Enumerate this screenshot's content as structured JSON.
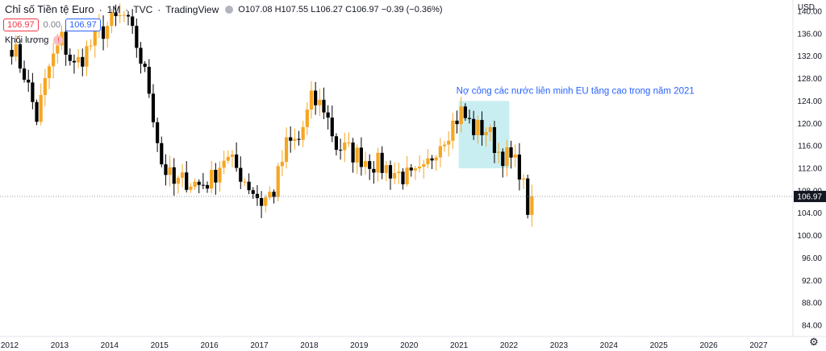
{
  "header": {
    "title": "Chỉ số Tiền tệ Euro",
    "interval": "1M",
    "exchange": "TVC",
    "source": "TradingView",
    "ohlc": {
      "open_label": "O",
      "open": "107.08",
      "high_label": "H",
      "high": "107.55",
      "low_label": "L",
      "low": "106.27",
      "close_label": "C",
      "close": "106.97",
      "change": "−0.39 (−0.36%)"
    }
  },
  "price_row": {
    "bid": "106.97",
    "spread": "0.00",
    "ask": "106.97"
  },
  "volume": {
    "label": "Khối lượng",
    "badge": "!"
  },
  "axis": {
    "currency": "USD",
    "current_price_label": "106.97"
  },
  "colors": {
    "up": "#f5a623",
    "down": "#000000",
    "highlight_fill": "#c9eef2",
    "annotation_text": "#2962ff",
    "price_line": "#9598a1",
    "price_tag_bg": "#131722"
  },
  "chart_data": {
    "type": "candlestick",
    "title": "",
    "xlabel": "",
    "ylabel": "",
    "ylim": [
      82,
      142
    ],
    "current_price": 106.97,
    "x_ticks": [
      "2012",
      "2013",
      "2014",
      "2015",
      "2016",
      "2017",
      "2018",
      "2019",
      "2020",
      "2021",
      "2022",
      "2023",
      "2024",
      "2025",
      "2026",
      "2027"
    ],
    "y_ticks": [
      84,
      88,
      92,
      96,
      100,
      104,
      108,
      112,
      116,
      120,
      124,
      128,
      132,
      136,
      140
    ],
    "y_tick_labels": [
      "84.00",
      "88.00",
      "92.00",
      "96.00",
      "100.00",
      "104.00",
      "108.00",
      "112.00",
      "116.00",
      "120.00",
      "124.00",
      "128.00",
      "132.00",
      "136.00",
      "140.00"
    ],
    "annotations": [
      {
        "text": "Nợ công các nước liên minh EU tăng cao trong năm 2021",
        "x_range": [
          "2021-01",
          "2021-12"
        ],
        "y_range": [
          112,
          124
        ]
      }
    ],
    "anchors": [
      [
        "2012-01",
        134
      ],
      [
        "2012-04",
        129
      ],
      [
        "2012-07",
        121
      ],
      [
        "2012-10",
        130
      ],
      [
        "2013-01",
        135
      ],
      [
        "2013-04",
        130
      ],
      [
        "2013-07",
        133
      ],
      [
        "2013-10",
        136
      ],
      [
        "2014-01",
        138
      ],
      [
        "2014-04",
        139
      ],
      [
        "2014-07",
        134
      ],
      [
        "2014-10",
        126
      ],
      [
        "2015-01",
        113
      ],
      [
        "2015-04",
        109
      ],
      [
        "2015-07",
        110
      ],
      [
        "2015-10",
        109
      ],
      [
        "2016-01",
        110
      ],
      [
        "2016-04",
        114
      ],
      [
        "2016-07",
        112
      ],
      [
        "2016-10",
        109
      ],
      [
        "2017-01",
        106
      ],
      [
        "2017-04",
        108
      ],
      [
        "2017-07",
        116
      ],
      [
        "2017-10",
        117
      ],
      [
        "2018-01",
        124
      ],
      [
        "2018-04",
        123
      ],
      [
        "2018-07",
        116
      ],
      [
        "2018-10",
        115
      ],
      [
        "2019-01",
        114
      ],
      [
        "2019-04",
        113
      ],
      [
        "2019-07",
        112
      ],
      [
        "2019-10",
        111
      ],
      [
        "2020-01",
        110
      ],
      [
        "2020-04",
        111
      ],
      [
        "2020-07",
        116
      ],
      [
        "2020-10",
        119
      ],
      [
        "2021-01",
        122
      ],
      [
        "2021-04",
        119
      ],
      [
        "2021-07",
        119
      ],
      [
        "2021-10",
        115
      ],
      [
        "2021-12",
        114
      ],
      [
        "2022-03",
        112
      ],
      [
        "2022-05",
        105
      ],
      [
        "2022-06",
        106.97
      ]
    ]
  }
}
